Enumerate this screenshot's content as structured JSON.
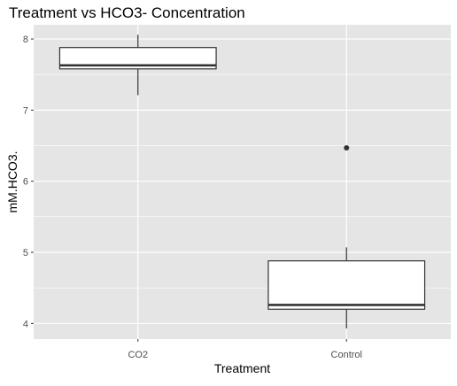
{
  "chart_data": {
    "type": "boxplot",
    "title": "Treatment vs HCO3- Concentration",
    "xlabel": "Treatment",
    "ylabel": "mM.HCO3.",
    "categories": [
      "CO2",
      "Control"
    ],
    "ylim": [
      3.78,
      8.2
    ],
    "yticks": [
      4,
      5,
      6,
      7,
      8
    ],
    "grid": true,
    "legend": "none",
    "colors": {
      "panel_background": "#e5e5e5",
      "gridline": "#ffffff",
      "box_fill": "#ffffff",
      "box_stroke": "#333333",
      "tick_label": "#4d4d4d",
      "text": "#000000"
    },
    "boxes": [
      {
        "category": "CO2",
        "min": 7.21,
        "q1": 7.58,
        "median": 7.63,
        "q3": 7.88,
        "max": 8.06,
        "outliers": []
      },
      {
        "category": "Control",
        "min": 3.93,
        "q1": 4.2,
        "median": 4.26,
        "q3": 4.88,
        "max": 5.07,
        "outliers": [
          6.47
        ]
      }
    ]
  }
}
